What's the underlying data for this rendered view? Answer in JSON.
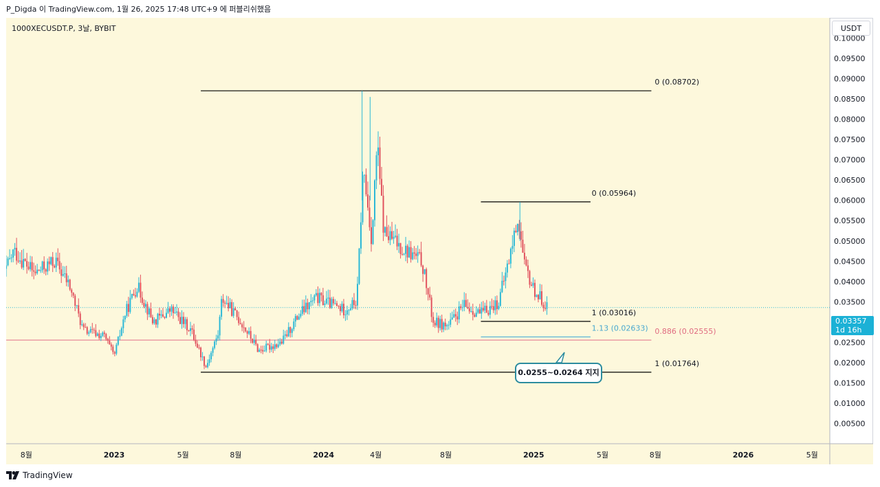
{
  "header": {
    "caption": "P_Digda 이 TradingView.com, 1월 26, 2025 17:48 UTC+9 에 퍼블리쉬했음"
  },
  "symbol": {
    "caption": "1000XECUSDT.P, 3날, BYBIT"
  },
  "currency": {
    "label": "USDT"
  },
  "last_price": {
    "value": "0.03357",
    "countdown": "1d 16h"
  },
  "annotation": {
    "text": "0.0255~0.0264 지지"
  },
  "footer": {
    "brand": "TradingView"
  },
  "colors": {
    "background": "#fdf8dc",
    "up": "#2bb8d6",
    "down": "#e1535f",
    "fib_line": "#000000",
    "fib_113": "#5ab3d6",
    "fib_886": "#e8899a",
    "badge": "#1bb1d6"
  },
  "chart_data": {
    "type": "candlestick",
    "y_axis": {
      "min": 0,
      "max": 0.105,
      "ticks": [
        "0.00500",
        "0.01000",
        "0.01500",
        "0.02000",
        "0.02500",
        "0.03000",
        "0.03500",
        "0.04000",
        "0.04500",
        "0.05000",
        "0.05500",
        "0.06000",
        "0.06500",
        "0.07000",
        "0.07500",
        "0.08000",
        "0.08500",
        "0.09000",
        "0.09500",
        "0.10000"
      ]
    },
    "x_axis": {
      "ticks": [
        {
          "label": "8월",
          "date": "2022-08-01"
        },
        {
          "label": "2023",
          "date": "2023-01-01"
        },
        {
          "label": "5월",
          "date": "2023-05-01"
        },
        {
          "label": "8월",
          "date": "2023-08-01"
        },
        {
          "label": "2024",
          "date": "2024-01-01"
        },
        {
          "label": "4월",
          "date": "2024-04-01"
        },
        {
          "label": "8월",
          "date": "2024-08-01"
        },
        {
          "label": "2025",
          "date": "2025-01-01"
        },
        {
          "label": "5월",
          "date": "2025-05-01"
        },
        {
          "label": "8월",
          "date": "2025-08-01"
        },
        {
          "label": "2026",
          "date": "2026-01-01"
        },
        {
          "label": "5월",
          "date": "2026-05-01"
        }
      ]
    },
    "price_points": [
      {
        "date": "2022-06-15",
        "price": 0.039
      },
      {
        "date": "2022-07-10",
        "price": 0.0475
      },
      {
        "date": "2022-08-15",
        "price": 0.042
      },
      {
        "date": "2022-09-20",
        "price": 0.045
      },
      {
        "date": "2022-10-15",
        "price": 0.039
      },
      {
        "date": "2022-11-08",
        "price": 0.028
      },
      {
        "date": "2022-12-15",
        "price": 0.0265
      },
      {
        "date": "2023-01-01",
        "price": 0.0215
      },
      {
        "date": "2023-01-20",
        "price": 0.032
      },
      {
        "date": "2023-02-10",
        "price": 0.039
      },
      {
        "date": "2023-03-10",
        "price": 0.03
      },
      {
        "date": "2023-04-10",
        "price": 0.033
      },
      {
        "date": "2023-05-15",
        "price": 0.028
      },
      {
        "date": "2023-06-10",
        "price": 0.019
      },
      {
        "date": "2023-07-01",
        "price": 0.027
      },
      {
        "date": "2023-07-08",
        "price": 0.036
      },
      {
        "date": "2023-08-10",
        "price": 0.03
      },
      {
        "date": "2023-09-10",
        "price": 0.023
      },
      {
        "date": "2023-10-20",
        "price": 0.025
      },
      {
        "date": "2023-11-20",
        "price": 0.032
      },
      {
        "date": "2023-12-20",
        "price": 0.036
      },
      {
        "date": "2024-02-05",
        "price": 0.033
      },
      {
        "date": "2024-02-28",
        "price": 0.035
      },
      {
        "date": "2024-03-10",
        "price": 0.068
      },
      {
        "date": "2024-03-25",
        "price": 0.05
      },
      {
        "date": "2024-04-03",
        "price": 0.074
      },
      {
        "date": "2024-04-15",
        "price": 0.052
      },
      {
        "date": "2024-05-20",
        "price": 0.048
      },
      {
        "date": "2024-06-20",
        "price": 0.045
      },
      {
        "date": "2024-07-10",
        "price": 0.03
      },
      {
        "date": "2024-08-05",
        "price": 0.029
      },
      {
        "date": "2024-09-01",
        "price": 0.034
      },
      {
        "date": "2024-10-01",
        "price": 0.032
      },
      {
        "date": "2024-11-01",
        "price": 0.035
      },
      {
        "date": "2024-11-20",
        "price": 0.046
      },
      {
        "date": "2024-12-05",
        "price": 0.056
      },
      {
        "date": "2024-12-15",
        "price": 0.044
      },
      {
        "date": "2025-01-01",
        "price": 0.038
      },
      {
        "date": "2025-01-26",
        "price": 0.03357
      }
    ],
    "fib_levels": [
      {
        "label": "0 (0.08702)",
        "value": 0.08702,
        "from": "2023-06-01",
        "to": "2025-07-25",
        "label_at": "2025-07-31"
      },
      {
        "label": "1 (0.01764)",
        "value": 0.01764,
        "from": "2023-06-01",
        "to": "2025-07-25",
        "label_at": "2025-07-31"
      },
      {
        "label": "0.886 (0.02555)",
        "value": 0.02555,
        "from": "2023-06-01",
        "to": "2025-07-25",
        "label_at": "2025-07-31"
      },
      {
        "label": "0 (0.05964)",
        "value": 0.05964,
        "from": "2024-10-01",
        "to": "2025-04-10",
        "label_at": "2025-04-12"
      },
      {
        "label": "1 (0.03016)",
        "value": 0.03016,
        "from": "2024-10-01",
        "to": "2025-04-10",
        "label_at": "2025-04-12"
      },
      {
        "label": "1.13 (0.02633)",
        "value": 0.02633,
        "from": "2024-10-01",
        "to": "2025-04-10",
        "label_at": "2025-04-12"
      }
    ]
  }
}
